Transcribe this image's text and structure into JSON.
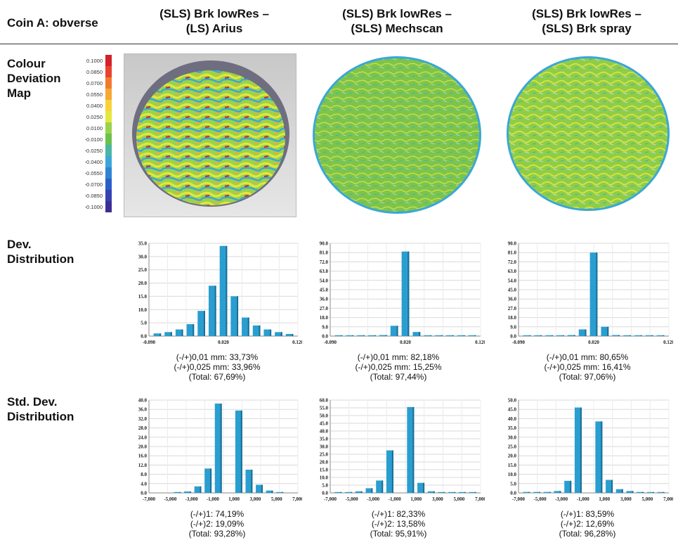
{
  "header": {
    "corner": "Coin A: obverse",
    "columns": [
      {
        "line1": "(SLS) Brk lowRes –",
        "line2": "(LS) Arius"
      },
      {
        "line1": "(SLS) Brk lowRes –",
        "line2": "(SLS) Mechscan"
      },
      {
        "line1": "(SLS) Brk lowRes –",
        "line2": "(SLS) Brk spray"
      }
    ]
  },
  "rows": {
    "map": [
      "Colour",
      "Deviation",
      "Map"
    ],
    "dev": [
      "Dev.",
      "Distribution"
    ],
    "std": [
      "Std. Dev.",
      "Distribution"
    ]
  },
  "legend": {
    "labels": [
      "0.1000",
      "0.0850",
      "0.0700",
      "0.0550",
      "0.0400",
      "0.0250",
      "0.0100",
      "-0.0100",
      "-0.0250",
      "-0.0400",
      "-0.0550",
      "-0.0700",
      "-0.0850",
      "-0.1000"
    ],
    "colors": [
      "#d4202a",
      "#e8432e",
      "#f27a30",
      "#f6a833",
      "#f9d23a",
      "#e4e83c",
      "#9ad34a",
      "#6cc04e",
      "#49b6a6",
      "#3aa7d8",
      "#2f84d3",
      "#2b5fc7",
      "#3442b2",
      "#3b2f96"
    ]
  },
  "colors": {
    "bar": "#2a9ed0",
    "bar_dark": "#1b6e93",
    "grid": "#d9d9d9"
  },
  "chart_data": [
    {
      "type": "bar",
      "id": "dev-1",
      "x_ticks": [
        "-0.090",
        "0.020",
        "0.120"
      ],
      "y_ticks": [
        "0.0",
        "5.0",
        "10.0",
        "15.0",
        "20.0",
        "25.0",
        "30.0",
        "35.0"
      ],
      "ylim": [
        0,
        35
      ],
      "values": [
        1.0,
        1.5,
        2.5,
        4.5,
        9.5,
        19.0,
        34.0,
        15.0,
        7.0,
        4.0,
        2.5,
        1.5,
        0.8
      ],
      "caption": [
        "(-/+)0,01 mm: 33,73%",
        "(-/+)0,025 mm: 33,96%",
        "(Total: 67,69%)"
      ]
    },
    {
      "type": "bar",
      "id": "dev-2",
      "x_ticks": [
        "-0.090",
        "0.020",
        "0.120"
      ],
      "y_ticks": [
        "0.0",
        "9.0",
        "18.0",
        "27.0",
        "36.0",
        "45.0",
        "54.0",
        "63.0",
        "72.0",
        "81.0",
        "90.0"
      ],
      "ylim": [
        0,
        90
      ],
      "values": [
        0.5,
        0.5,
        0.5,
        0.5,
        1.0,
        10.0,
        82.0,
        4.0,
        0.8,
        0.5,
        0.5,
        0.5,
        0.4
      ],
      "caption": [
        "(-/+)0,01 mm: 82,18%",
        "(-/+)0,025 mm: 15,25%",
        "(Total: 97,44%)"
      ]
    },
    {
      "type": "bar",
      "id": "dev-3",
      "x_ticks": [
        "-0.090",
        "0.020",
        "0.120"
      ],
      "y_ticks": [
        "0.0",
        "9.0",
        "18.0",
        "27.0",
        "36.0",
        "45.0",
        "54.0",
        "63.0",
        "72.0",
        "81.0",
        "90.0"
      ],
      "ylim": [
        0,
        90
      ],
      "values": [
        0.5,
        0.5,
        0.5,
        0.5,
        1.0,
        6.5,
        81.0,
        9.0,
        1.0,
        0.5,
        0.5,
        0.5,
        0.4
      ],
      "caption": [
        "(-/+)0,01 mm: 80,65%",
        "(-/+)0,025 mm: 16,41%",
        "(Total: 97,06%)"
      ]
    },
    {
      "type": "bar",
      "id": "std-1",
      "x_ticks": [
        "-7,000",
        "-5,000",
        "-3,000",
        "-1,000",
        "1,000",
        "3,000",
        "5,000",
        "7,000"
      ],
      "y_ticks": [
        "0.0",
        "4.0",
        "8.0",
        "12.0",
        "16.0",
        "20.0",
        "24.0",
        "28.0",
        "32.0",
        "36.0",
        "40.0"
      ],
      "ylim": [
        0,
        40
      ],
      "values": [
        0.0,
        0.0,
        0.2,
        0.6,
        2.8,
        10.5,
        38.5,
        0.0,
        35.5,
        10.0,
        3.5,
        1.0,
        0.2,
        0.0
      ],
      "caption": [
        "(-/+)1: 74,19%",
        "(-/+)2: 19,09%",
        "(Total: 93,28%)"
      ]
    },
    {
      "type": "bar",
      "id": "std-2",
      "x_ticks": [
        "-7,000",
        "-5,000",
        "-3,000",
        "-1,000",
        "1,000",
        "3,000",
        "5,000",
        "7,000"
      ],
      "y_ticks": [
        "0.0",
        "5.0",
        "10.0",
        "15.0",
        "20.0",
        "25.0",
        "30.0",
        "35.0",
        "40.0",
        "45.0",
        "50.0",
        "55.0",
        "60.0"
      ],
      "ylim": [
        0,
        60
      ],
      "values": [
        0.5,
        0.5,
        1.0,
        3.0,
        8.0,
        27.5,
        0.0,
        55.5,
        6.5,
        1.0,
        0.5,
        0.5,
        0.3,
        0.2
      ],
      "caption": [
        "(-/+)1: 82,33%",
        "(-/+)2: 13,58%",
        "(Total: 95,91%)"
      ]
    },
    {
      "type": "bar",
      "id": "std-3",
      "x_ticks": [
        "-7,000",
        "-5,000",
        "-3,000",
        "-1,000",
        "1,000",
        "3,000",
        "5,000",
        "7,000"
      ],
      "y_ticks": [
        "0.0",
        "5.0",
        "10.0",
        "15.0",
        "20.0",
        "25.0",
        "30.0",
        "35.0",
        "40.0",
        "45.0",
        "50.0"
      ],
      "ylim": [
        0,
        50
      ],
      "values": [
        0.5,
        0.5,
        0.5,
        1.0,
        6.5,
        46.0,
        0.0,
        38.5,
        7.0,
        2.0,
        1.0,
        0.5,
        0.3,
        0.2
      ],
      "caption": [
        "(-/+)1: 83,59%",
        "(-/+)2: 12,69%",
        "(Total: 96,28%)"
      ]
    }
  ]
}
